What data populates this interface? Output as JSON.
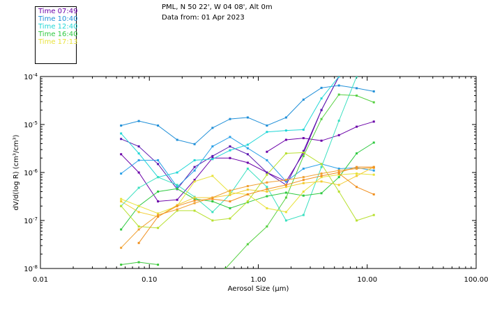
{
  "header": {
    "location": "PML, N 50 22', W 04 08', Alt 0m",
    "data_from": "Data from: 01 Apr 2023"
  },
  "legend": [
    {
      "label": "Time 07:49",
      "color": "#6a00a8"
    },
    {
      "label": "Time 10:40",
      "color": "#1f8fd8"
    },
    {
      "label": "Time 12:40",
      "color": "#22d7d7"
    },
    {
      "label": "Time 16:40",
      "color": "#2ec940"
    },
    {
      "label": "Time 17:13",
      "color": "#e8e23a"
    }
  ],
  "chart_data": {
    "type": "line",
    "xlabel": "Aerosol Size (μm)",
    "ylabel": "dV/d(log R) (cm³/cm³)",
    "x_scale": "log",
    "y_scale": "log",
    "xlim": [
      0.01,
      100
    ],
    "ylim": [
      1e-08,
      0.0001
    ],
    "x_ticks": [
      {
        "value": 0.01,
        "label": "0.01"
      },
      {
        "value": 0.1,
        "label": "0.10"
      },
      {
        "value": 1,
        "label": "1.00"
      },
      {
        "value": 10,
        "label": "10.00"
      },
      {
        "value": 100,
        "label": "100.00"
      }
    ],
    "y_ticks": [
      {
        "value": 1e-08,
        "base": "10",
        "exp": "-8"
      },
      {
        "value": 1e-07,
        "base": "10",
        "exp": "-7"
      },
      {
        "value": 1e-06,
        "base": "10",
        "exp": "-6"
      },
      {
        "value": 1e-05,
        "base": "10",
        "exp": "-5"
      },
      {
        "value": 0.0001,
        "base": "10",
        "exp": "-4"
      }
    ],
    "grid": false,
    "series": [
      {
        "name": "Time 07:49",
        "color": "#6a00a8",
        "points": [
          [
            0.055,
            2.4e-06
          ],
          [
            0.08,
            1e-06
          ],
          [
            0.12,
            2.5e-07
          ],
          [
            0.18,
            2.7e-07
          ],
          [
            0.26,
            7e-07
          ],
          [
            0.38,
            2e-06
          ],
          [
            0.55,
            2e-06
          ],
          [
            0.8,
            1.6e-06
          ],
          [
            1.2,
            1e-06
          ],
          [
            1.8,
            6.5e-07
          ],
          [
            2.6,
            2.5e-06
          ],
          [
            3.8,
            2e-05
          ],
          [
            5.5,
            0.0001
          ]
        ]
      },
      {
        "name": "",
        "color": "#5a16b0",
        "points": [
          [
            0.055,
            5e-06
          ],
          [
            0.08,
            3.5e-06
          ],
          [
            0.12,
            1.5e-06
          ],
          [
            0.18,
            4.5e-07
          ],
          [
            0.26,
            1.3e-06
          ],
          [
            0.38,
            2.2e-06
          ],
          [
            0.55,
            3.5e-06
          ],
          [
            0.8,
            2.4e-06
          ],
          [
            1.2,
            1e-06
          ],
          [
            1.8,
            5.5e-07
          ],
          [
            2.6,
            2.8e-06
          ],
          [
            3.8,
            2e-05
          ],
          [
            5.5,
            0.0001
          ]
        ]
      },
      {
        "name": "",
        "color": "#6a00a8",
        "points": [
          [
            1.2,
            2.7e-06
          ],
          [
            1.8,
            4.8e-06
          ],
          [
            2.6,
            5.2e-06
          ],
          [
            3.8,
            4.6e-06
          ],
          [
            5.5,
            6e-06
          ],
          [
            8,
            9e-06
          ],
          [
            11.5,
            1.15e-05
          ]
        ]
      },
      {
        "name": "Time 10:40",
        "color": "#1f8fd8",
        "points": [
          [
            0.055,
            9.5e-06
          ],
          [
            0.08,
            1.18e-05
          ],
          [
            0.12,
            9.5e-06
          ],
          [
            0.18,
            4.8e-06
          ],
          [
            0.26,
            3.9e-06
          ],
          [
            0.38,
            8.5e-06
          ],
          [
            0.55,
            1.3e-05
          ],
          [
            0.8,
            1.4e-05
          ],
          [
            1.2,
            9.5e-06
          ],
          [
            1.8,
            1.4e-05
          ],
          [
            2.6,
            3.3e-05
          ],
          [
            3.8,
            5.8e-05
          ],
          [
            5.5,
            6.5e-05
          ],
          [
            8,
            5.7e-05
          ],
          [
            11.5,
            4.9e-05
          ]
        ]
      },
      {
        "name": "",
        "color": "#2aa0e8",
        "points": [
          [
            0.055,
            9.5e-07
          ],
          [
            0.08,
            1.8e-06
          ],
          [
            0.12,
            1.8e-06
          ],
          [
            0.18,
            5e-07
          ],
          [
            0.26,
            1.1e-06
          ],
          [
            0.38,
            3.5e-06
          ],
          [
            0.55,
            5.5e-06
          ],
          [
            0.8,
            3.2e-06
          ],
          [
            1.2,
            1.8e-06
          ],
          [
            1.8,
            6.5e-07
          ],
          [
            2.6,
            1.2e-06
          ],
          [
            3.8,
            1.5e-06
          ],
          [
            5.5,
            1.2e-06
          ],
          [
            8,
            1.25e-06
          ],
          [
            11.5,
            1.1e-06
          ]
        ]
      },
      {
        "name": "Time 12:40",
        "color": "#22d7d7",
        "points": [
          [
            0.055,
            6.5e-06
          ],
          [
            0.08,
            2.5e-06
          ],
          [
            0.12,
            8e-07
          ],
          [
            0.18,
            1e-06
          ],
          [
            0.26,
            1.8e-06
          ],
          [
            0.38,
            1.9e-06
          ],
          [
            0.55,
            2.9e-06
          ],
          [
            0.8,
            3.8e-06
          ],
          [
            1.2,
            7e-06
          ],
          [
            1.8,
            7.5e-06
          ],
          [
            2.6,
            7.8e-06
          ],
          [
            3.8,
            3.5e-05
          ],
          [
            5.5,
            0.0001
          ]
        ]
      },
      {
        "name": "",
        "color": "#3ae0c0",
        "points": [
          [
            0.055,
            2e-07
          ],
          [
            0.08,
            4.8e-07
          ],
          [
            0.12,
            8e-07
          ],
          [
            0.18,
            5.5e-07
          ],
          [
            0.26,
            3.1e-07
          ],
          [
            0.38,
            1.5e-07
          ],
          [
            0.55,
            3.5e-07
          ],
          [
            0.8,
            1.2e-06
          ],
          [
            1.2,
            5e-07
          ],
          [
            1.8,
            1e-07
          ],
          [
            2.6,
            1.3e-07
          ],
          [
            3.8,
            1.3e-06
          ],
          [
            5.5,
            1.2e-05
          ],
          [
            8,
            0.0001
          ]
        ]
      },
      {
        "name": "Time 16:40",
        "color": "#2ec940",
        "points": [
          [
            0.055,
            6.5e-08
          ],
          [
            0.08,
            2e-07
          ],
          [
            0.12,
            4e-07
          ],
          [
            0.18,
            4.6e-07
          ],
          [
            0.26,
            2.8e-07
          ],
          [
            0.38,
            2.5e-07
          ],
          [
            0.55,
            1.8e-07
          ],
          [
            0.8,
            2.4e-07
          ],
          [
            1.2,
            3.2e-07
          ],
          [
            1.8,
            3.8e-07
          ],
          [
            2.6,
            3.3e-07
          ],
          [
            3.8,
            3.7e-07
          ],
          [
            5.5,
            8e-07
          ],
          [
            8,
            2.5e-06
          ],
          [
            11.5,
            4.2e-06
          ]
        ]
      },
      {
        "name": "",
        "color": "#3cc83c",
        "points": [
          [
            0.055,
            1.2e-08
          ],
          [
            0.08,
            1.35e-08
          ],
          [
            0.12,
            1.2e-08
          ]
        ]
      },
      {
        "name": "",
        "color": "#55d040",
        "points": [
          [
            0.5,
            1e-08
          ],
          [
            0.8,
            3.2e-08
          ],
          [
            1.2,
            7.5e-08
          ],
          [
            1.8,
            3e-07
          ],
          [
            2.6,
            2.2e-06
          ],
          [
            3.8,
            1.3e-05
          ],
          [
            5.5,
            4.2e-05
          ],
          [
            8,
            4e-05
          ],
          [
            11.5,
            2.9e-05
          ]
        ]
      },
      {
        "name": "Time 17:13",
        "color": "#e8e23a",
        "points": [
          [
            0.055,
            2.8e-07
          ],
          [
            0.08,
            2e-07
          ],
          [
            0.12,
            1.4e-07
          ],
          [
            0.18,
            2e-07
          ],
          [
            0.26,
            6.5e-07
          ],
          [
            0.38,
            8.5e-07
          ],
          [
            0.55,
            3.8e-07
          ],
          [
            0.8,
            3.5e-07
          ],
          [
            1.2,
            1.8e-07
          ],
          [
            1.8,
            1.5e-07
          ],
          [
            2.6,
            4e-07
          ],
          [
            3.8,
            8e-07
          ],
          [
            5.5,
            9e-07
          ],
          [
            8,
            9.5e-07
          ],
          [
            11.5,
            9e-07
          ]
        ]
      },
      {
        "name": "",
        "color": "#f2cc30",
        "points": [
          [
            0.055,
            2.5e-07
          ],
          [
            0.08,
            1.5e-07
          ],
          [
            0.12,
            1.2e-07
          ],
          [
            0.18,
            2.1e-07
          ],
          [
            0.26,
            3e-07
          ],
          [
            0.38,
            3e-07
          ],
          [
            0.55,
            3.4e-07
          ],
          [
            0.8,
            4.4e-07
          ],
          [
            1.2,
            4e-07
          ],
          [
            1.8,
            5e-07
          ],
          [
            2.6,
            6e-07
          ],
          [
            3.8,
            6.5e-07
          ],
          [
            5.5,
            5.5e-07
          ],
          [
            8,
            8.5e-07
          ],
          [
            11.5,
            1.3e-06
          ]
        ]
      },
      {
        "name": "",
        "color": "#b8e030",
        "points": [
          [
            0.055,
            2e-07
          ],
          [
            0.08,
            7.5e-08
          ],
          [
            0.12,
            7e-08
          ],
          [
            0.18,
            1.6e-07
          ],
          [
            0.26,
            1.6e-07
          ],
          [
            0.38,
            1e-07
          ],
          [
            0.55,
            1.1e-07
          ],
          [
            0.8,
            2.5e-07
          ],
          [
            1.2,
            9e-07
          ],
          [
            1.8,
            2.5e-06
          ],
          [
            2.6,
            2.6e-06
          ],
          [
            3.8,
            1.5e-06
          ],
          [
            5.5,
            4e-07
          ],
          [
            8,
            1e-07
          ],
          [
            11.5,
            1.3e-07
          ]
        ]
      },
      {
        "name": "",
        "color": "#f0a030",
        "points": [
          [
            0.055,
            2.7e-08
          ],
          [
            0.08,
            6.5e-08
          ],
          [
            0.12,
            1.3e-07
          ],
          [
            0.18,
            1.7e-07
          ],
          [
            0.26,
            2.3e-07
          ],
          [
            0.38,
            3e-07
          ],
          [
            0.55,
            4.2e-07
          ],
          [
            0.8,
            5.2e-07
          ],
          [
            1.2,
            6.2e-07
          ],
          [
            1.8,
            7e-07
          ],
          [
            2.6,
            8e-07
          ],
          [
            3.8,
            9.5e-07
          ],
          [
            5.5,
            1.1e-06
          ],
          [
            8,
            1.2e-06
          ],
          [
            11.5,
            1.25e-06
          ]
        ]
      },
      {
        "name": "",
        "color": "#f09020",
        "points": [
          [
            0.08,
            3.4e-08
          ],
          [
            0.12,
            1.2e-07
          ],
          [
            0.18,
            2e-07
          ],
          [
            0.26,
            2.6e-07
          ],
          [
            0.38,
            2.8e-07
          ],
          [
            0.55,
            2.5e-07
          ],
          [
            0.8,
            3.5e-07
          ],
          [
            1.2,
            4.5e-07
          ],
          [
            1.8,
            5.5e-07
          ],
          [
            2.6,
            7e-07
          ],
          [
            3.8,
            8.5e-07
          ],
          [
            5.5,
            1e-06
          ],
          [
            8,
            1.3e-06
          ],
          [
            11.5,
            1.3e-06
          ]
        ]
      },
      {
        "name": "",
        "color": "#f09020",
        "points": [
          [
            5.5,
            9.5e-07
          ],
          [
            8,
            5e-07
          ],
          [
            11.5,
            3.5e-07
          ]
        ]
      }
    ]
  }
}
